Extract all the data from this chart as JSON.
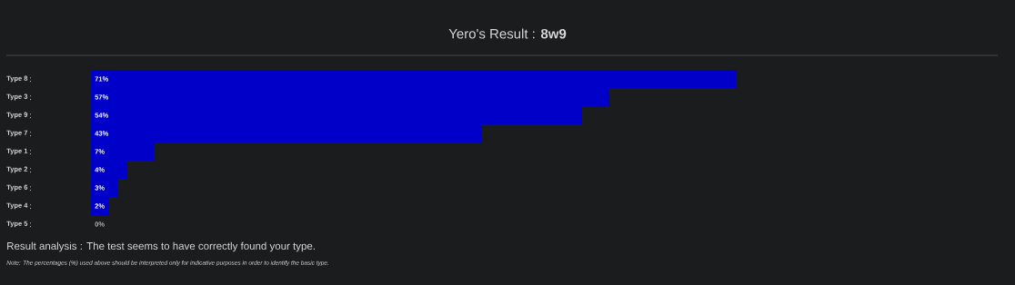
{
  "chart_data": {
    "type": "bar",
    "orientation": "horizontal",
    "title": "Yero's Result : **8w9**",
    "categories": [
      "Type 8",
      "Type 3",
      "Type 9",
      "Type 7",
      "Type 1",
      "Type 2",
      "Type 6",
      "Type 4",
      "Type 5"
    ],
    "values": [
      71,
      57,
      54,
      43,
      7,
      4,
      3,
      2,
      0
    ],
    "value_labels": [
      "71%",
      "57%",
      "54%",
      "43%",
      "7%",
      "4%",
      "3%",
      "2%",
      "0%"
    ],
    "color": "#0000c8",
    "tick_labels": "y",
    "annotations": [
      "Result analysis : The test seems to have correctly found your type.",
      "Note: The percentages (%) used above should be interpreted only for indicative purposes in order to identify the basic type."
    ]
  }
}
